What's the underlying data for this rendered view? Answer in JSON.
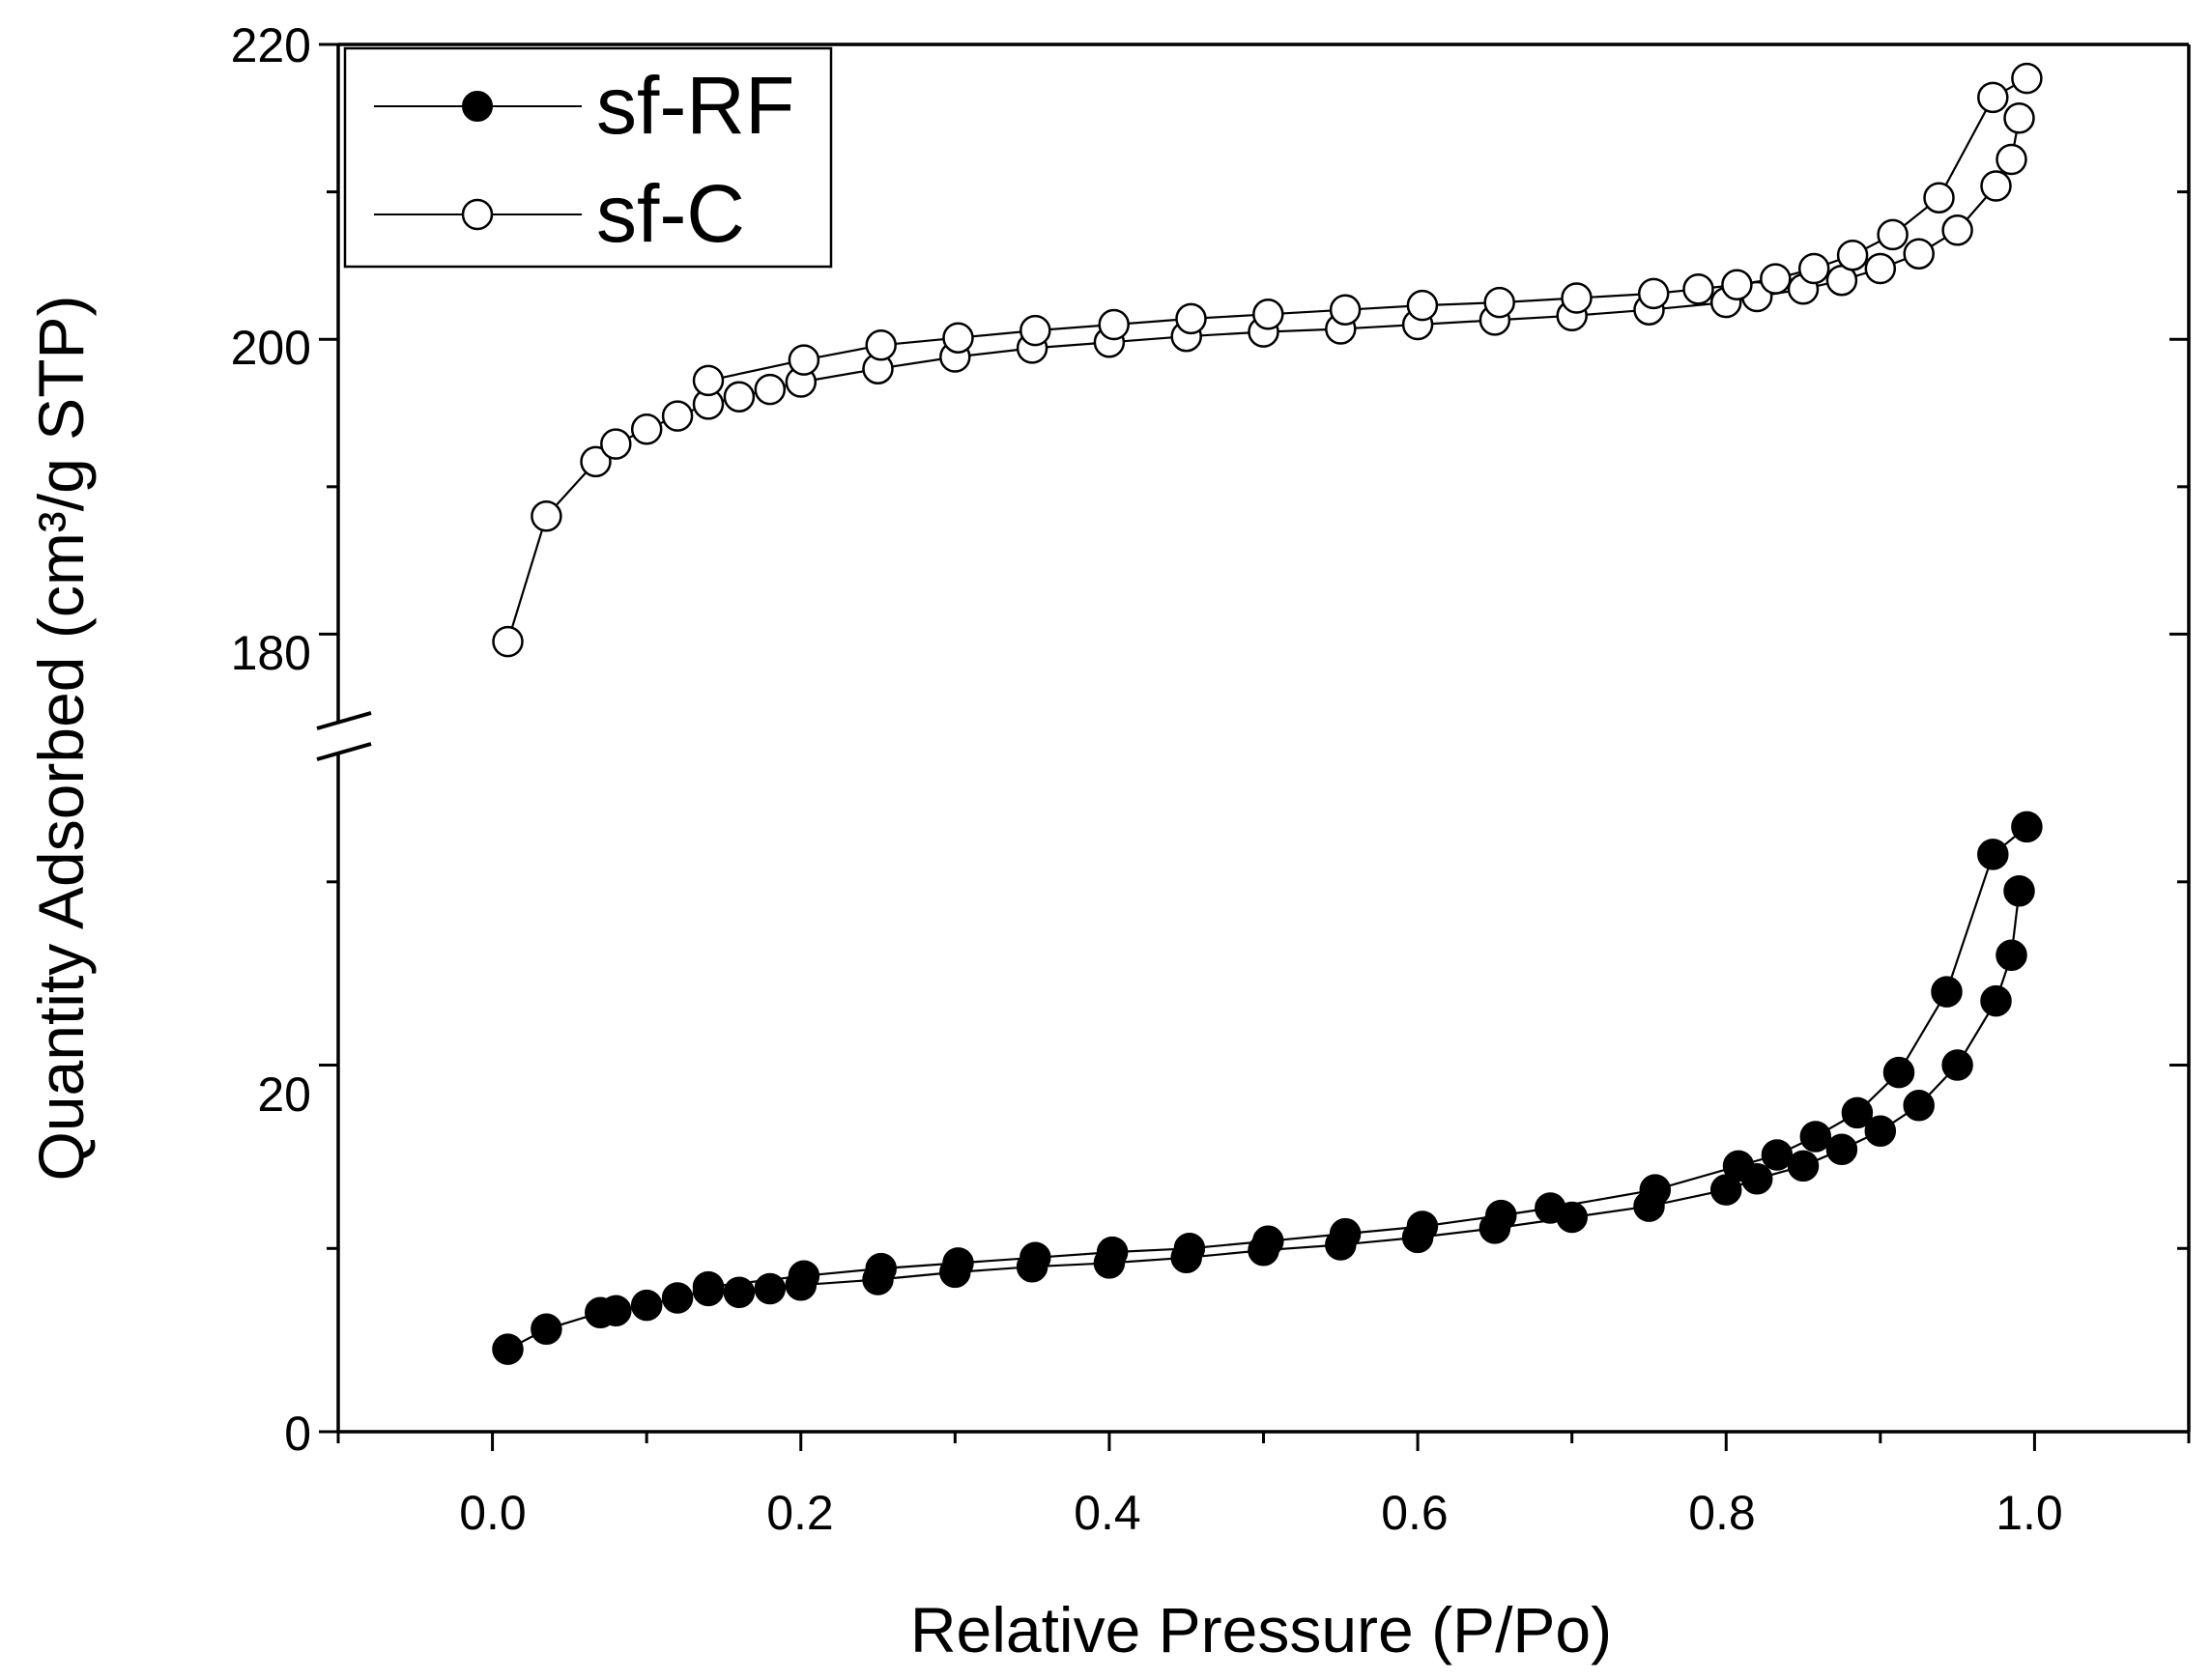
{
  "chart_data": {
    "type": "line",
    "xlabel": "Relative Pressure (P/Po)",
    "ylabel": "Quantity Adsorbed (cm³/g STP)",
    "xlim": [
      -0.1,
      1.1
    ],
    "x_ticks": [
      "0.0",
      "0.2",
      "0.4",
      "0.6",
      "0.8",
      "1.0"
    ],
    "y_axis_break": true,
    "lower_ylim": [
      0,
      37
    ],
    "upper_ylim": [
      174,
      220
    ],
    "y_ticks_lower": [
      "0",
      "20"
    ],
    "y_ticks_upper": [
      "180",
      "200",
      "220"
    ],
    "legend_position": "top-left",
    "series": [
      {
        "name": "sf-RF",
        "marker": "filled-circle",
        "color": "#000000",
        "adsorption": {
          "x": [
            0.01,
            0.035,
            0.07,
            0.08,
            0.1,
            0.12,
            0.14,
            0.16,
            0.18,
            0.2,
            0.25,
            0.3,
            0.35,
            0.4,
            0.45,
            0.5,
            0.55,
            0.6,
            0.65,
            0.7,
            0.75,
            0.8,
            0.82,
            0.85,
            0.875,
            0.9,
            0.925,
            0.95,
            0.975,
            0.985,
            0.99
          ],
          "y": [
            4.5,
            5.6,
            6.5,
            6.6,
            6.9,
            7.3,
            7.7,
            7.6,
            7.8,
            8.0,
            8.3,
            8.7,
            9.0,
            9.2,
            9.5,
            9.9,
            10.2,
            10.6,
            11.1,
            11.7,
            12.3,
            13.2,
            13.8,
            14.5,
            15.4,
            16.4,
            17.8,
            20.0,
            23.5,
            26.0,
            29.5
          ]
        },
        "desorption": {
          "x": [
            0.995,
            0.973,
            0.943,
            0.912,
            0.885,
            0.858,
            0.833,
            0.808,
            0.754,
            0.686,
            0.654,
            0.603,
            0.553,
            0.503,
            0.452,
            0.402,
            0.352,
            0.302,
            0.252,
            0.202,
            0.14
          ],
          "y": [
            33.0,
            31.5,
            24.0,
            19.6,
            17.4,
            16.1,
            15.1,
            14.5,
            13.2,
            12.2,
            11.8,
            11.2,
            10.8,
            10.4,
            10.0,
            9.8,
            9.5,
            9.2,
            8.9,
            8.5,
            7.9
          ]
        }
      },
      {
        "name": "sf-C",
        "marker": "open-circle",
        "color": "#000000",
        "adsorption": {
          "x": [
            0.01,
            0.035,
            0.067,
            0.08,
            0.1,
            0.12,
            0.14,
            0.16,
            0.18,
            0.2,
            0.25,
            0.3,
            0.35,
            0.4,
            0.45,
            0.5,
            0.55,
            0.6,
            0.65,
            0.7,
            0.75,
            0.8,
            0.82,
            0.85,
            0.875,
            0.9,
            0.925,
            0.95,
            0.975,
            0.985,
            0.99
          ],
          "y": [
            179.5,
            188.0,
            191.7,
            192.9,
            193.9,
            194.8,
            195.6,
            196.1,
            196.6,
            197.1,
            198.0,
            198.8,
            199.4,
            199.8,
            200.2,
            200.5,
            200.7,
            201.0,
            201.3,
            201.6,
            202.0,
            202.5,
            202.9,
            203.4,
            204.0,
            204.8,
            205.8,
            207.4,
            210.4,
            212.2,
            215.0
          ]
        },
        "desorption": {
          "x": [
            0.995,
            0.973,
            0.938,
            0.908,
            0.882,
            0.857,
            0.832,
            0.807,
            0.782,
            0.753,
            0.703,
            0.653,
            0.603,
            0.553,
            0.503,
            0.453,
            0.403,
            0.352,
            0.302,
            0.252,
            0.202,
            0.14
          ],
          "y": [
            217.7,
            216.4,
            209.6,
            207.1,
            205.7,
            204.8,
            204.1,
            203.7,
            203.4,
            203.1,
            202.8,
            202.5,
            202.3,
            202.0,
            201.7,
            201.4,
            201.0,
            200.6,
            200.1,
            199.6,
            198.6,
            197.2
          ]
        }
      }
    ]
  }
}
